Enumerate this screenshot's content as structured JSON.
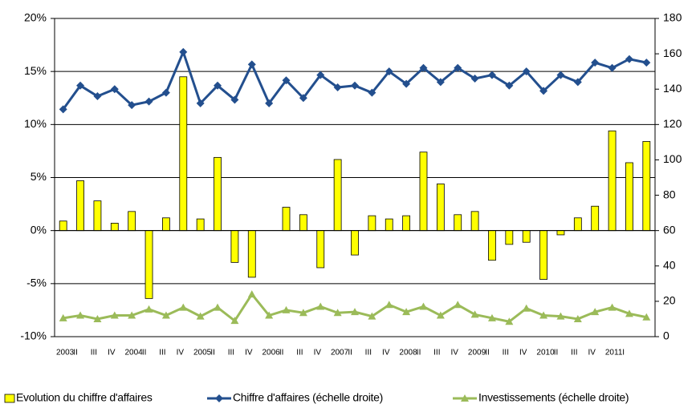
{
  "chart_data": {
    "type": "bar",
    "categories": [
      "2003",
      "II",
      "III",
      "IV",
      "2004",
      "II",
      "III",
      "IV",
      "2005",
      "II",
      "III",
      "IV",
      "2006",
      "II",
      "III",
      "IV",
      "2007",
      "II",
      "III",
      "IV",
      "2008",
      "II",
      "III",
      "IV",
      "2009",
      "II",
      "III",
      "IV",
      "2010",
      "II",
      "III",
      "IV",
      "2011",
      "I",
      null
    ],
    "series": [
      {
        "name": "Evolution du chiffre d'affaires",
        "type": "bar",
        "color": "#ffff00",
        "values": [
          0.9,
          4.7,
          2.8,
          0.7,
          1.8,
          -6.4,
          1.2,
          14.5,
          1.1,
          6.9,
          -3.0,
          -4.4,
          0,
          2.2,
          1.5,
          -3.5,
          6.7,
          -2.3,
          1.4,
          1.1,
          1.4,
          7.4,
          4.4,
          1.5,
          1.8,
          -2.8,
          -1.3,
          -1.1,
          -4.6,
          -0.4,
          1.2,
          2.3,
          9.4,
          6.4,
          8.4
        ]
      },
      {
        "name": "Chiffre d'affaires (échelle droite)",
        "type": "line",
        "axis": "y2",
        "marker": "diamond",
        "color": "#234f8e",
        "values": [
          128.6,
          142,
          136,
          140,
          131,
          133,
          138,
          161,
          132,
          142,
          134,
          154,
          132,
          145,
          135,
          148,
          141,
          142,
          138,
          150,
          143,
          152,
          144,
          152,
          146,
          148,
          142,
          150,
          139,
          148,
          144,
          155,
          152,
          157,
          155
        ]
      },
      {
        "name": "Investissements (échelle droite)",
        "type": "line",
        "axis": "y2",
        "marker": "triangle",
        "color": "#9bbb59",
        "values": [
          10.5,
          12,
          10,
          12,
          12,
          15.5,
          12,
          16.5,
          11.5,
          16.5,
          9,
          24,
          12,
          15,
          13.5,
          17,
          13.5,
          14,
          11.5,
          18,
          14,
          17,
          12,
          18,
          12.5,
          10.5,
          8.5,
          16,
          12,
          11.5,
          10,
          14,
          16.5,
          13,
          11
        ]
      }
    ],
    "ylim": [
      -10,
      20
    ],
    "yticks": [
      {
        "value": -10,
        "label": "-10%"
      },
      {
        "value": -5,
        "label": "-5%"
      },
      {
        "value": 0,
        "label": "0%"
      },
      {
        "value": 5,
        "label": "5%"
      },
      {
        "value": 10,
        "label": "10%"
      },
      {
        "value": 15,
        "label": "15%"
      },
      {
        "value": 20,
        "label": "20%"
      }
    ],
    "y2lim": [
      0,
      180
    ],
    "y2ticks": [
      0,
      20,
      40,
      60,
      80,
      100,
      120,
      140,
      160,
      180
    ],
    "grid": true,
    "legend": "bottom"
  }
}
